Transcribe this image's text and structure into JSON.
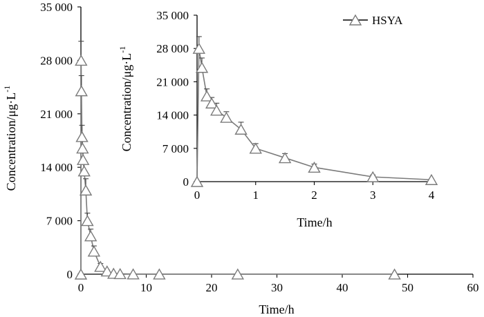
{
  "chart_data": [
    {
      "type": "line",
      "panel": "main",
      "xlabel": "Time/h",
      "ylabel": "Concentration/μg·L",
      "ylabel_superscript": "-1",
      "xlim": [
        0,
        60
      ],
      "ylim": [
        0,
        35000
      ],
      "xticks": [
        0,
        10,
        20,
        30,
        40,
        50,
        60
      ],
      "yticks": [
        0,
        7000,
        14000,
        21000,
        28000,
        35000
      ],
      "xtick_labels": [
        "0",
        "10",
        "20",
        "30",
        "40",
        "50",
        "60"
      ],
      "ytick_labels": [
        "0",
        "7 000",
        "14 000",
        "21 000",
        "28 000",
        "35 000"
      ],
      "series": [
        {
          "name": "HSYA",
          "marker": "triangle",
          "x": [
            0,
            0.033,
            0.083,
            0.167,
            0.25,
            0.333,
            0.5,
            0.75,
            1,
            1.5,
            2,
            3,
            4,
            5,
            6,
            8,
            12,
            24,
            48
          ],
          "y": [
            0,
            28000,
            24000,
            18000,
            16500,
            15000,
            13500,
            11000,
            7000,
            5000,
            3000,
            1000,
            400,
            100,
            50,
            20,
            10,
            5,
            2
          ],
          "err": [
            0,
            2500,
            2000,
            1500,
            1200,
            1500,
            1200,
            1500,
            1000,
            900,
            700,
            400,
            150,
            50,
            20,
            10,
            5,
            3,
            2
          ]
        }
      ]
    },
    {
      "type": "line",
      "panel": "inset",
      "xlabel": "Time/h",
      "ylabel": "Concentration/μg·L",
      "ylabel_superscript": "-1",
      "xlim": [
        0,
        4
      ],
      "ylim": [
        0,
        35000
      ],
      "xticks": [
        0,
        1,
        2,
        3,
        4
      ],
      "yticks": [
        0,
        7000,
        14000,
        21000,
        28000,
        35000
      ],
      "xtick_labels": [
        "0",
        "1",
        "2",
        "3",
        "4"
      ],
      "ytick_labels": [
        "0",
        "7 000",
        "14 000",
        "21 000",
        "28 000",
        "35 000"
      ],
      "legend": {
        "position": "top-right",
        "entries": [
          "HSYA"
        ]
      },
      "series": [
        {
          "name": "HSYA",
          "marker": "triangle",
          "x": [
            0,
            0.033,
            0.083,
            0.167,
            0.25,
            0.333,
            0.5,
            0.75,
            1,
            1.5,
            2,
            3,
            4
          ],
          "y": [
            0,
            28000,
            24000,
            18000,
            16500,
            15000,
            13500,
            11000,
            7000,
            5000,
            3000,
            1000,
            400
          ],
          "err": [
            0,
            2500,
            2000,
            1500,
            1200,
            1500,
            1200,
            1500,
            1000,
            900,
            700,
            400,
            150
          ]
        }
      ]
    }
  ]
}
